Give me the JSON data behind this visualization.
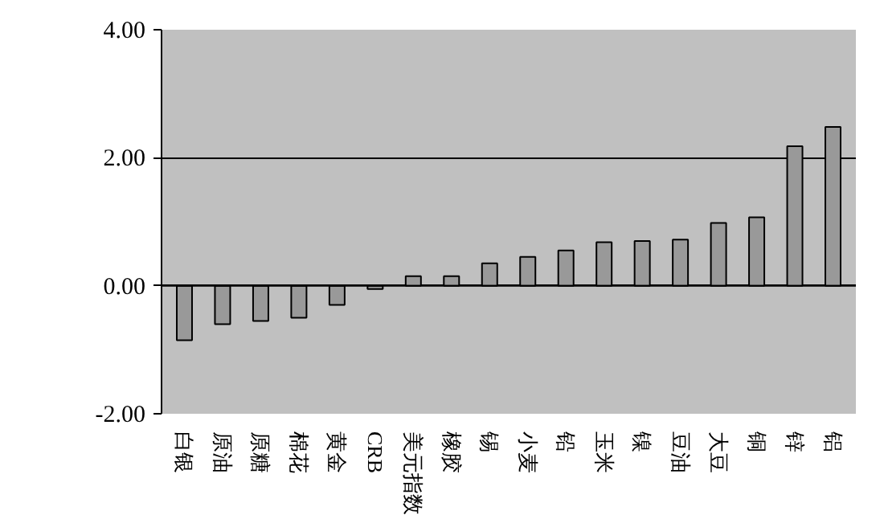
{
  "chart_data": {
    "type": "bar",
    "categories": [
      "白银",
      "原油",
      "原糖",
      "棉花",
      "黄金",
      "CRB",
      "美元指数",
      "橡胶",
      "锡",
      "小麦",
      "铅",
      "玉米",
      "镍",
      "豆油",
      "大豆",
      "铜",
      "锌",
      "铝"
    ],
    "values": [
      -0.85,
      -0.6,
      -0.55,
      -0.5,
      -0.3,
      -0.05,
      0.15,
      0.15,
      0.35,
      0.45,
      0.55,
      0.68,
      0.7,
      0.72,
      0.98,
      1.07,
      2.18,
      2.48
    ],
    "color": "#999999",
    "ylim": [
      -2,
      4
    ],
    "yticks": [
      {
        "value": -2,
        "label": "-2.00"
      },
      {
        "value": 0,
        "label": "0.00"
      },
      {
        "value": 2,
        "label": "2.00"
      },
      {
        "value": 4,
        "label": "4.00"
      }
    ],
    "grid": "y"
  }
}
